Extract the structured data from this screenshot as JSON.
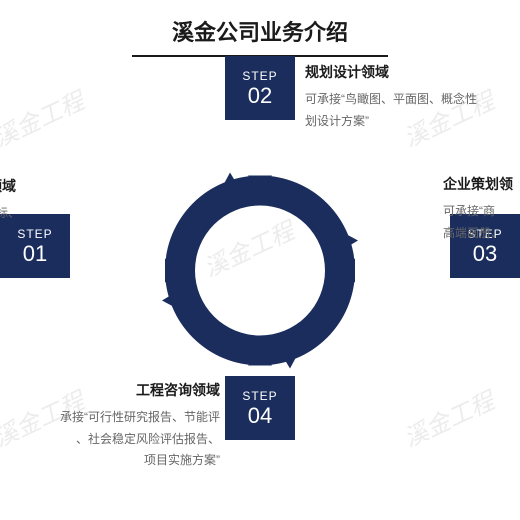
{
  "title": "溪金公司业务介绍",
  "colors": {
    "primary": "#1a2d5c",
    "text_dark": "#1a1a1a",
    "text_gray": "#666666",
    "background": "#ffffff",
    "watermark": "rgba(180,180,180,0.25)"
  },
  "watermark_text": "溪金工程",
  "diagram": {
    "type": "circular-arrow-cycle",
    "arrow_color": "#1a2d5c",
    "arrow_count": 4
  },
  "steps": [
    {
      "step_label": "STEP",
      "step_num": "01",
      "title": "咨询领域",
      "desc": "、工程标、"
    },
    {
      "step_label": "STEP",
      "step_num": "02",
      "title": "规划设计领域",
      "desc": "可承接“鸟瞰图、平面图、概念性\n划设计方案”"
    },
    {
      "step_label": "STEP",
      "step_num": "03",
      "title": "企业策划领",
      "desc": "可承接“商\n高端画册、"
    },
    {
      "step_label": "STEP",
      "step_num": "04",
      "title": "工程咨询领域",
      "desc": "承接“可行性研究报告、节能评\n、社会稳定风险评估报告、\n项目实施方案”"
    }
  ]
}
